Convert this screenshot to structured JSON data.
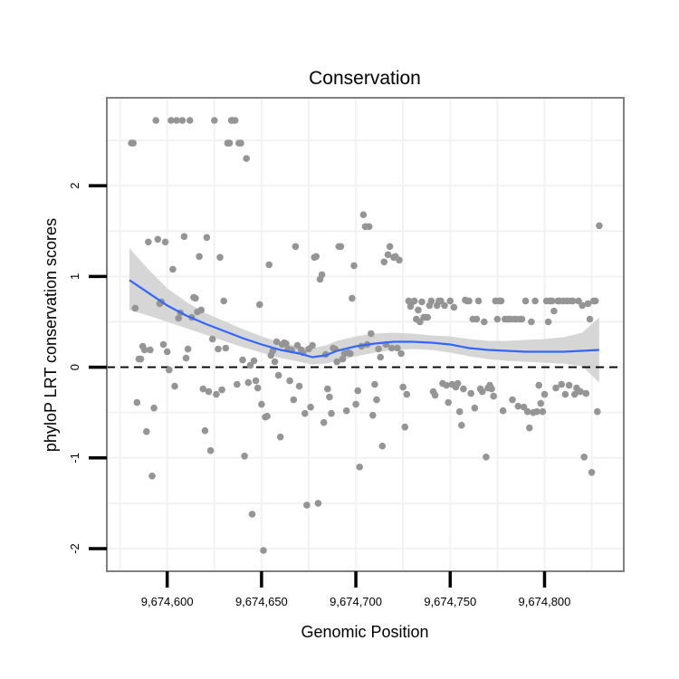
{
  "chart_data": {
    "type": "scatter",
    "title": "Conservation",
    "xlabel": "Genomic Position",
    "ylabel": "phyloP LRT conservation scores",
    "xlim": [
      9674568,
      9674842
    ],
    "ylim": [
      -2.25,
      2.97
    ],
    "x_ticks": [
      {
        "value": 9674600,
        "label": "9,674,600"
      },
      {
        "value": 9674650,
        "label": "9,674,650"
      },
      {
        "value": 9674700,
        "label": "9,674,700"
      },
      {
        "value": 9674750,
        "label": "9,674,750"
      },
      {
        "value": 9674800,
        "label": "9,674,800"
      }
    ],
    "y_ticks": [
      {
        "value": -2,
        "label": "-2"
      },
      {
        "value": -1,
        "label": "-1"
      },
      {
        "value": 0,
        "label": "0"
      },
      {
        "value": 1,
        "label": "1"
      },
      {
        "value": 2,
        "label": "2"
      }
    ],
    "grid": true,
    "reference_line": {
      "y": 0,
      "style": "dashed"
    },
    "colors": {
      "points": "#959595",
      "smooth": "#3366ff",
      "ribbon": "#d2d2d2",
      "grid": "#f2f2f2",
      "panel_border": "#808080"
    },
    "points": [
      [
        9674581,
        2.47
      ],
      [
        9674582,
        2.47
      ],
      [
        9674583,
        0.65
      ],
      [
        9674584,
        -0.39
      ],
      [
        9674585,
        0.09
      ],
      [
        9674586,
        0.09
      ],
      [
        9674587,
        0.23
      ],
      [
        9674588,
        0.19
      ],
      [
        9674589,
        -0.71
      ],
      [
        9674590,
        1.38
      ],
      [
        9674591,
        0.19
      ],
      [
        9674592,
        -1.2
      ],
      [
        9674593,
        -0.45
      ],
      [
        9674594,
        2.72
      ],
      [
        9674595,
        1.41
      ],
      [
        9674596,
        0.7
      ],
      [
        9674597,
        0.72
      ],
      [
        9674598,
        0.25
      ],
      [
        9674599,
        1.38
      ],
      [
        9674600,
        0.17
      ],
      [
        9674601,
        -0.03
      ],
      [
        9674602,
        2.72
      ],
      [
        9674603,
        1.08
      ],
      [
        9674604,
        -0.21
      ],
      [
        9674605,
        2.72
      ],
      [
        9674606,
        0.54
      ],
      [
        9674607,
        0.6
      ],
      [
        9674608,
        2.72
      ],
      [
        9674609,
        1.44
      ],
      [
        9674610,
        0.1
      ],
      [
        9674611,
        0.2
      ],
      [
        9674612,
        2.72
      ],
      [
        9674613,
        0.55
      ],
      [
        9674614,
        0.77
      ],
      [
        9674615,
        0.76
      ],
      [
        9674616,
        0.61
      ],
      [
        9674617,
        1.22
      ],
      [
        9674618,
        0.63
      ],
      [
        9674619,
        -0.24
      ],
      [
        9674620,
        -0.7
      ],
      [
        9674621,
        1.43
      ],
      [
        9674622,
        -0.27
      ],
      [
        9674623,
        -0.92
      ],
      [
        9674624,
        0.31
      ],
      [
        9674625,
        2.72
      ],
      [
        9674626,
        -0.3
      ],
      [
        9674627,
        0.2
      ],
      [
        9674628,
        1.21
      ],
      [
        9674629,
        -0.25
      ],
      [
        9674630,
        0.73
      ],
      [
        9674631,
        0.21
      ],
      [
        9674632,
        2.47
      ],
      [
        9674633,
        2.47
      ],
      [
        9674634,
        2.72
      ],
      [
        9674635,
        2.72
      ],
      [
        9674636,
        2.72
      ],
      [
        9674637,
        -0.19
      ],
      [
        9674638,
        2.47
      ],
      [
        9674639,
        2.47
      ],
      [
        9674640,
        0.08
      ],
      [
        9674641,
        -0.98
      ],
      [
        9674642,
        2.3
      ],
      [
        9674643,
        -0.17
      ],
      [
        9674644,
        0.02
      ],
      [
        9674645,
        -1.62
      ],
      [
        9674646,
        0.07
      ],
      [
        9674647,
        -0.15
      ],
      [
        9674648,
        -0.23
      ],
      [
        9674649,
        0.69
      ],
      [
        9674650,
        -0.41
      ],
      [
        9674651,
        -2.02
      ],
      [
        9674652,
        -0.55
      ],
      [
        9674653,
        -0.54
      ],
      [
        9674654,
        1.13
      ],
      [
        9674655,
        0.13
      ],
      [
        9674656,
        0.18
      ],
      [
        9674657,
        0.06
      ],
      [
        9674658,
        0.28
      ],
      [
        9674659,
        -0.09
      ],
      [
        9674660,
        -0.77
      ],
      [
        9674661,
        0.25
      ],
      [
        9674662,
        0.27
      ],
      [
        9674663,
        0.26
      ],
      [
        9674664,
        0.2
      ],
      [
        9674665,
        -0.15
      ],
      [
        9674666,
        0.19
      ],
      [
        9674667,
        -0.36
      ],
      [
        9674668,
        1.33
      ],
      [
        9674669,
        0.24
      ],
      [
        9674670,
        -0.21
      ],
      [
        9674671,
        0.19
      ],
      [
        9674672,
        0.16
      ],
      [
        9674673,
        -0.51
      ],
      [
        9674674,
        -1.52
      ],
      [
        9674675,
        0.2
      ],
      [
        9674676,
        -0.44
      ],
      [
        9674677,
        0.24
      ],
      [
        9674678,
        1.21
      ],
      [
        9674679,
        1.22
      ],
      [
        9674680,
        -1.5
      ],
      [
        9674681,
        0.97
      ],
      [
        9674682,
        1.02
      ],
      [
        9674683,
        -0.61
      ],
      [
        9674684,
        0.14
      ],
      [
        9674685,
        -0.24
      ],
      [
        9674686,
        -0.33
      ],
      [
        9674687,
        -0.51
      ],
      [
        9674688,
        0.21
      ],
      [
        9674689,
        0.2
      ],
      [
        9674690,
        0.06
      ],
      [
        9674691,
        1.33
      ],
      [
        9674692,
        1.33
      ],
      [
        9674693,
        0.09
      ],
      [
        9674694,
        0.15
      ],
      [
        9674695,
        -0.48
      ],
      [
        9674696,
        0.16
      ],
      [
        9674697,
        0.15
      ],
      [
        9674698,
        0.76
      ],
      [
        9674699,
        1.12
      ],
      [
        9674700,
        -0.41
      ],
      [
        9674701,
        -0.26
      ],
      [
        9674702,
        -1.1
      ],
      [
        9674703,
        0.23
      ],
      [
        9674704,
        1.68
      ],
      [
        9674705,
        1.55
      ],
      [
        9674706,
        0.25
      ],
      [
        9674707,
        1.55
      ],
      [
        9674708,
        0.37
      ],
      [
        9674709,
        -0.53
      ],
      [
        9674710,
        -0.19
      ],
      [
        9674711,
        -0.36
      ],
      [
        9674712,
        0.2
      ],
      [
        9674713,
        0.11
      ],
      [
        9674714,
        -0.87
      ],
      [
        9674715,
        1.16
      ],
      [
        9674716,
        0.25
      ],
      [
        9674717,
        1.24
      ],
      [
        9674718,
        1.33
      ],
      [
        9674719,
        0.21
      ],
      [
        9674720,
        1.21
      ],
      [
        9674721,
        1.22
      ],
      [
        9674722,
        0.21
      ],
      [
        9674723,
        1.18
      ],
      [
        9674724,
        0.15
      ],
      [
        9674725,
        -0.22
      ],
      [
        9674726,
        -0.66
      ],
      [
        9674727,
        -0.3
      ],
      [
        9674728,
        0.73
      ],
      [
        9674729,
        0.67
      ],
      [
        9674730,
        0.72
      ],
      [
        9674731,
        0.73
      ],
      [
        9674732,
        0.53
      ],
      [
        9674733,
        0.63
      ],
      [
        9674734,
        0.5
      ],
      [
        9674735,
        0.72
      ],
      [
        9674736,
        0.55
      ],
      [
        9674737,
        0.55
      ],
      [
        9674738,
        0.55
      ],
      [
        9674739,
        0.68
      ],
      [
        9674740,
        0.73
      ],
      [
        9674741,
        -0.27
      ],
      [
        9674742,
        -0.31
      ],
      [
        9674743,
        0.68
      ],
      [
        9674744,
        0.73
      ],
      [
        9674745,
        0.73
      ],
      [
        9674746,
        -0.18
      ],
      [
        9674747,
        0.68
      ],
      [
        9674748,
        -0.2
      ],
      [
        9674749,
        -0.39
      ],
      [
        9674750,
        0.73
      ],
      [
        9674751,
        -0.19
      ],
      [
        9674752,
        0.66
      ],
      [
        9674753,
        -0.22
      ],
      [
        9674754,
        -0.18
      ],
      [
        9674755,
        -0.49
      ],
      [
        9674756,
        -0.64
      ],
      [
        9674757,
        -0.24
      ],
      [
        9674758,
        0.74
      ],
      [
        9674759,
        0.73
      ],
      [
        9674760,
        0.73
      ],
      [
        9674761,
        -0.29
      ],
      [
        9674762,
        0.53
      ],
      [
        9674763,
        -0.45
      ],
      [
        9674764,
        0.53
      ],
      [
        9674765,
        0.73
      ],
      [
        9674766,
        -0.24
      ],
      [
        9674767,
        -0.27
      ],
      [
        9674768,
        0.5
      ],
      [
        9674769,
        -0.99
      ],
      [
        9674770,
        -0.23
      ],
      [
        9674771,
        -0.2
      ],
      [
        9674772,
        -0.24
      ],
      [
        9674773,
        -0.32
      ],
      [
        9674774,
        0.73
      ],
      [
        9674775,
        0.53
      ],
      [
        9674776,
        0.73
      ],
      [
        9674777,
        0.73
      ],
      [
        9674778,
        -0.48
      ],
      [
        9674779,
        0.53
      ],
      [
        9674780,
        0.53
      ],
      [
        9674781,
        0.53
      ],
      [
        9674782,
        0.53
      ],
      [
        9674783,
        -0.36
      ],
      [
        9674784,
        0.53
      ],
      [
        9674785,
        0.53
      ],
      [
        9674786,
        -0.43
      ],
      [
        9674787,
        0.53
      ],
      [
        9674788,
        0.53
      ],
      [
        9674789,
        -0.44
      ],
      [
        9674790,
        0.73
      ],
      [
        9674791,
        -0.49
      ],
      [
        9674792,
        -0.67
      ],
      [
        9674793,
        0.5
      ],
      [
        9674794,
        -0.5
      ],
      [
        9674795,
        0.73
      ],
      [
        9674796,
        -0.49
      ],
      [
        9674797,
        -0.2
      ],
      [
        9674798,
        -0.4
      ],
      [
        9674799,
        -0.49
      ],
      [
        9674800,
        -0.3
      ],
      [
        9674801,
        0.73
      ],
      [
        9674802,
        0.5
      ],
      [
        9674803,
        0.73
      ],
      [
        9674804,
        0.73
      ],
      [
        9674805,
        0.62
      ],
      [
        9674806,
        -0.23
      ],
      [
        9674807,
        0.73
      ],
      [
        9674808,
        0.73
      ],
      [
        9674809,
        -0.19
      ],
      [
        9674810,
        0.73
      ],
      [
        9674811,
        -0.3
      ],
      [
        9674812,
        0.73
      ],
      [
        9674813,
        -0.2
      ],
      [
        9674814,
        0.73
      ],
      [
        9674815,
        0.73
      ],
      [
        9674816,
        -0.3
      ],
      [
        9674817,
        -0.23
      ],
      [
        9674818,
        0.73
      ],
      [
        9674819,
        -0.27
      ],
      [
        9674820,
        0.68
      ],
      [
        9674821,
        -0.99
      ],
      [
        9674822,
        -0.29
      ],
      [
        9674823,
        0.7
      ],
      [
        9674824,
        0.53
      ],
      [
        9674825,
        -1.16
      ],
      [
        9674826,
        0.73
      ],
      [
        9674827,
        0.73
      ],
      [
        9674828,
        -0.49
      ],
      [
        9674829,
        1.56
      ]
    ],
    "smooth": {
      "x": [
        9674580,
        9674590,
        9674600,
        9674610,
        9674620,
        9674630,
        9674640,
        9674650,
        9674660,
        9674670,
        9674677,
        9674684,
        9674690,
        9674700,
        9674710,
        9674720,
        9674730,
        9674740,
        9674750,
        9674760,
        9674770,
        9674780,
        9674790,
        9674800,
        9674810,
        9674820,
        9674829
      ],
      "y": [
        0.96,
        0.82,
        0.68,
        0.57,
        0.48,
        0.4,
        0.32,
        0.25,
        0.19,
        0.15,
        0.11,
        0.13,
        0.18,
        0.23,
        0.26,
        0.28,
        0.28,
        0.27,
        0.25,
        0.21,
        0.19,
        0.18,
        0.17,
        0.17,
        0.17,
        0.18,
        0.19
      ],
      "lower": [
        0.63,
        0.57,
        0.5,
        0.43,
        0.36,
        0.29,
        0.22,
        0.16,
        0.1,
        0.06,
        0.03,
        0.04,
        0.07,
        0.12,
        0.16,
        0.19,
        0.2,
        0.19,
        0.16,
        0.12,
        0.09,
        0.07,
        0.06,
        0.05,
        0.04,
        0.01,
        -0.17
      ],
      "upper": [
        1.31,
        1.08,
        0.87,
        0.72,
        0.6,
        0.51,
        0.42,
        0.34,
        0.27,
        0.23,
        0.21,
        0.24,
        0.29,
        0.34,
        0.37,
        0.38,
        0.37,
        0.35,
        0.34,
        0.31,
        0.29,
        0.29,
        0.3,
        0.31,
        0.33,
        0.38,
        0.55
      ]
    }
  }
}
